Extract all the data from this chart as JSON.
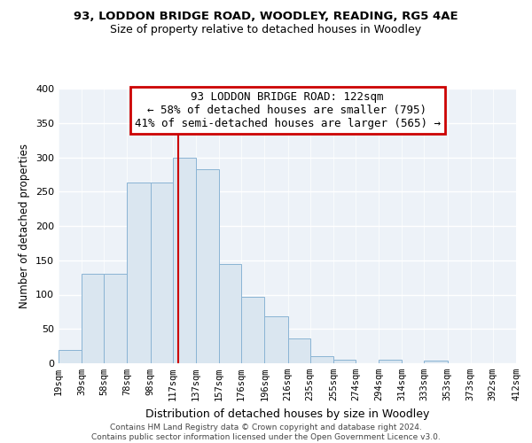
{
  "title1": "93, LODDON BRIDGE ROAD, WOODLEY, READING, RG5 4AE",
  "title2": "Size of property relative to detached houses in Woodley",
  "xlabel": "Distribution of detached houses by size in Woodley",
  "ylabel": "Number of detached properties",
  "bar_edges": [
    19,
    39,
    58,
    78,
    98,
    117,
    137,
    157,
    176,
    196,
    216,
    235,
    255,
    274,
    294,
    314,
    333,
    353,
    373,
    392,
    412
  ],
  "bar_heights": [
    20,
    130,
    130,
    263,
    263,
    300,
    283,
    145,
    97,
    68,
    36,
    10,
    5,
    0,
    5,
    0,
    4,
    0,
    0,
    0,
    0
  ],
  "tick_labels": [
    "19sqm",
    "39sqm",
    "58sqm",
    "78sqm",
    "98sqm",
    "117sqm",
    "137sqm",
    "157sqm",
    "176sqm",
    "196sqm",
    "216sqm",
    "235sqm",
    "255sqm",
    "274sqm",
    "294sqm",
    "314sqm",
    "333sqm",
    "353sqm",
    "373sqm",
    "392sqm",
    "412sqm"
  ],
  "bar_color": "#dae6f0",
  "bar_edge_color": "#8ab4d4",
  "vline_x": 122,
  "vline_color": "#cc0000",
  "annotation_line1": "93 LODDON BRIDGE ROAD: 122sqm",
  "annotation_line2": "← 58% of detached houses are smaller (795)",
  "annotation_line3": "41% of semi-detached houses are larger (565) →",
  "ylim": [
    0,
    400
  ],
  "yticks": [
    0,
    50,
    100,
    150,
    200,
    250,
    300,
    350,
    400
  ],
  "footnote1": "Contains HM Land Registry data © Crown copyright and database right 2024.",
  "footnote2": "Contains public sector information licensed under the Open Government Licence v3.0.",
  "background_color": "#edf2f8",
  "grid_color": "#ffffff",
  "title1_fontsize": 9.5,
  "title2_fontsize": 9,
  "annotation_fontsize": 9,
  "tick_fontsize": 7.5,
  "ylabel_fontsize": 8.5,
  "xlabel_fontsize": 9
}
